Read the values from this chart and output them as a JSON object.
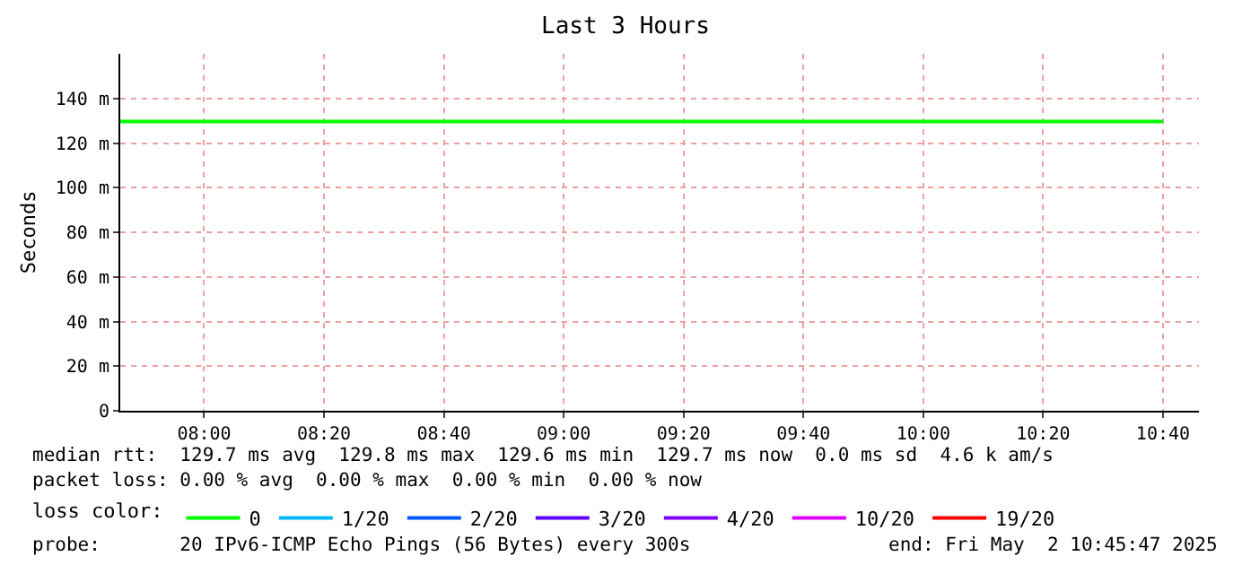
{
  "chart_data": {
    "type": "step",
    "title": "Last 3 Hours",
    "ylabel": "Seconds",
    "x": [
      "2025-05-02T07:46",
      "2025-05-02T10:40"
    ],
    "xlim": [
      "2025-05-02T07:46",
      "2025-05-02T10:46"
    ],
    "xticks": [
      {
        "value": "2025-05-02T08:00",
        "label": "08:00"
      },
      {
        "value": "2025-05-02T08:20",
        "label": "08:20"
      },
      {
        "value": "2025-05-02T08:40",
        "label": "08:40"
      },
      {
        "value": "2025-05-02T09:00",
        "label": "09:00"
      },
      {
        "value": "2025-05-02T09:20",
        "label": "09:20"
      },
      {
        "value": "2025-05-02T09:40",
        "label": "09:40"
      },
      {
        "value": "2025-05-02T10:00",
        "label": "10:00"
      },
      {
        "value": "2025-05-02T10:20",
        "label": "10:20"
      },
      {
        "value": "2025-05-02T10:40",
        "label": "10:40"
      }
    ],
    "ylim": [
      0,
      160
    ],
    "yticks": [
      0,
      {
        "value": 20,
        "label": "20 m"
      },
      {
        "value": 40,
        "label": "40 m"
      },
      {
        "value": 60,
        "label": "60 m"
      },
      {
        "value": 80,
        "label": "80 m"
      },
      {
        "value": 100,
        "label": "100 m"
      },
      {
        "value": 120,
        "label": "120 m"
      },
      {
        "value": 140,
        "label": "140 m"
      }
    ],
    "grid": true,
    "legend": "bottom",
    "legend_title": "loss color:",
    "series": [
      {
        "name": "0",
        "color": "#00ff00",
        "values": [
          129.7,
          129.7
        ]
      },
      {
        "name": "1/20",
        "color": "#00b8ff",
        "values": [
          null,
          null
        ]
      },
      {
        "name": "2/20",
        "color": "#0059ff",
        "values": [
          null,
          null
        ]
      },
      {
        "name": "3/20",
        "color": "#5e00ff",
        "values": [
          null,
          null
        ]
      },
      {
        "name": "4/20",
        "color": "#7e00ff",
        "values": [
          null,
          null
        ]
      },
      {
        "name": "10/20",
        "color": "#dd00ff",
        "values": [
          null,
          null
        ]
      },
      {
        "name": "19/20",
        "color": "#ff0000",
        "values": [
          null,
          null
        ]
      }
    ],
    "annotations": [
      "median rtt:  129.7 ms avg  129.8 ms max  129.6 ms min  129.7 ms now  0.0 ms sd  4.6 k am/s",
      "packet loss: 0.00 % avg  0.00 % max  0.00 % min  0.00 % now",
      "probe:       20 IPv6-ICMP Echo Pings (56 Bytes) every 300s",
      "end: Fri May  2 10:45:47 2025"
    ]
  }
}
